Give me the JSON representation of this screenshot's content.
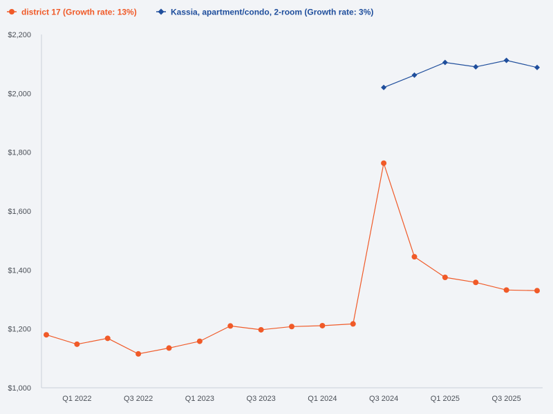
{
  "chart_data": {
    "type": "line",
    "title": "",
    "xlabel": "",
    "ylabel": "",
    "ylim": [
      1000,
      2200
    ],
    "y_ticks": [
      "$1,000",
      "$1,200",
      "$1,400",
      "$1,600",
      "$1,800",
      "$2,000",
      "$2,200"
    ],
    "y_tick_values": [
      1000,
      1200,
      1400,
      1600,
      1800,
      2000,
      2200
    ],
    "x_tick_labels": [
      "Q1 2022",
      "Q3 2022",
      "Q1 2023",
      "Q3 2023",
      "Q1 2024",
      "Q3 2024",
      "Q1 2025",
      "Q3 2025"
    ],
    "x_tick_positions": [
      1,
      3,
      5,
      7,
      9,
      11,
      13,
      15
    ],
    "grid": false,
    "legend_position": "top-left",
    "series": [
      {
        "name": "district 17 (Growth rate: 13%)",
        "color": "#f05a28",
        "marker": "circle",
        "x": [
          0,
          1,
          2,
          3,
          4,
          5,
          6,
          7,
          8,
          9,
          10,
          11,
          12,
          13,
          14,
          15,
          16
        ],
        "values": [
          1180,
          1148,
          1168,
          1115,
          1135,
          1158,
          1210,
          1197,
          1208,
          1211,
          1217,
          1763,
          1445,
          1375,
          1358,
          1332,
          1330
        ]
      },
      {
        "name": "Kassia, apartment/condo, 2-room (Growth rate: 3%)",
        "color": "#1f4e9c",
        "marker": "diamond",
        "x": [
          11,
          12,
          13,
          14,
          15,
          16
        ],
        "values": [
          2020,
          2062,
          2105,
          2090,
          2112,
          2088
        ]
      }
    ]
  }
}
